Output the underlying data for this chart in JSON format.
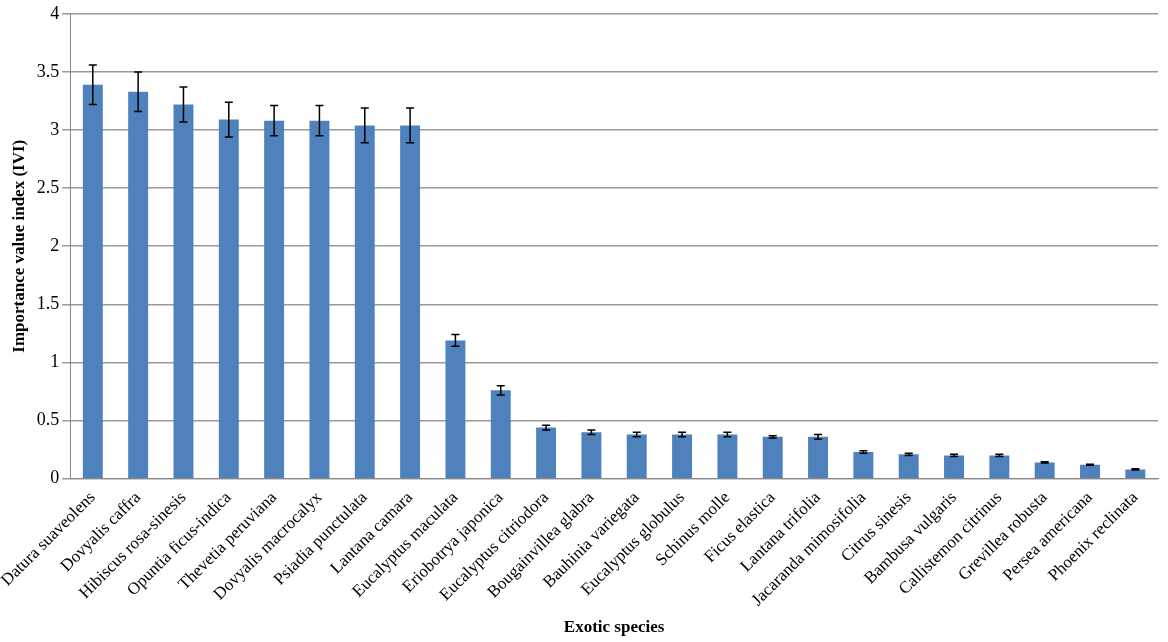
{
  "chart_data": {
    "type": "bar",
    "xlabel": "Exotic species",
    "ylabel": "Importance value index (IVI)",
    "categories": [
      "Datura suaveolens",
      "Dovyalis caffra",
      "Hibiscus rosa-sinesis",
      "Opuntia ficus-indica",
      "Thevetia peruviana",
      "Dovyalis macrocalyx",
      "Psiadia punctulata",
      "Lantana camara",
      "Eucalyptus maculata",
      "Eriobotrya japonica",
      "Eucalyptus citriodora",
      "Bougainvillea glabra",
      "Bauhinia variegata",
      "Eucalyptus globulus",
      "Schinus molle",
      "Ficus elastica",
      "Lantana trifolia",
      "Jacaranda mimosifolia",
      "Citrus sinesis",
      "Bambusa vulgaris",
      "Callistemon citrinus",
      "Grevillea robusta",
      "Persea americana",
      "Phoenix reclinata"
    ],
    "values": [
      3.39,
      3.33,
      3.22,
      3.09,
      3.08,
      3.08,
      3.04,
      3.04,
      1.19,
      0.76,
      0.44,
      0.4,
      0.38,
      0.38,
      0.38,
      0.36,
      0.36,
      0.23,
      0.21,
      0.2,
      0.2,
      0.14,
      0.12,
      0.08
    ],
    "errors": [
      0.17,
      0.17,
      0.15,
      0.15,
      0.13,
      0.13,
      0.15,
      0.15,
      0.05,
      0.04,
      0.02,
      0.02,
      0.02,
      0.02,
      0.02,
      0.01,
      0.02,
      0.01,
      0.01,
      0.01,
      0.01,
      0.005,
      0.005,
      0.005
    ],
    "color": "#4f81bd",
    "ylim": [
      0,
      4
    ],
    "yticks": [
      0,
      0.5,
      1,
      1.5,
      2,
      2.5,
      3,
      3.5,
      4
    ],
    "grid": "y",
    "legend": false
  }
}
